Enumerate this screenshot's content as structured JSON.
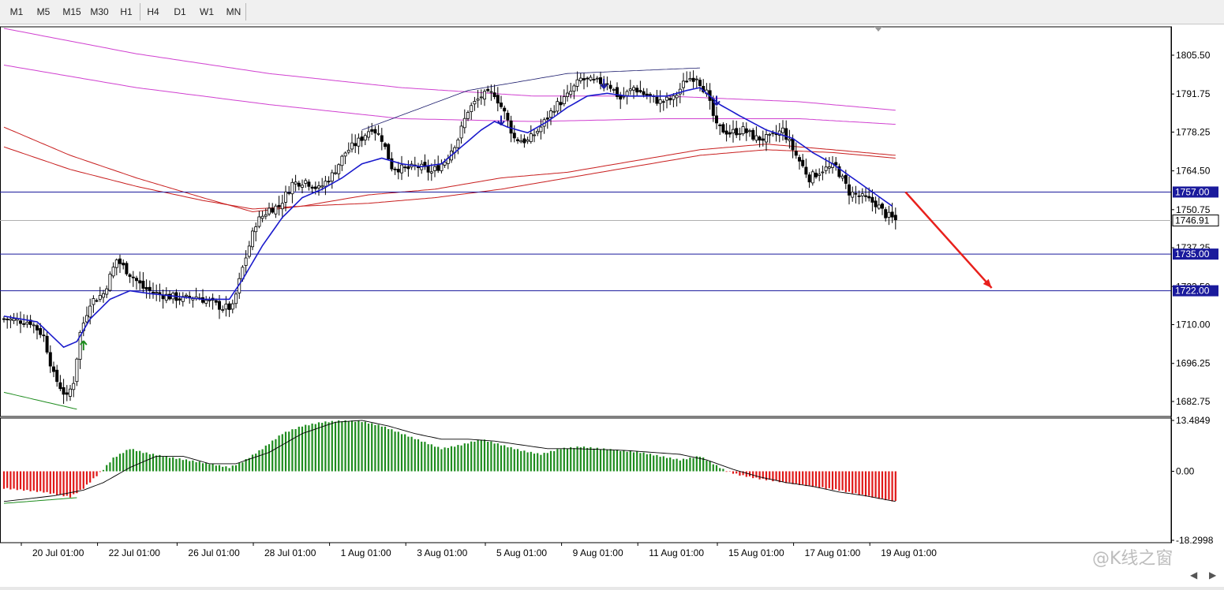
{
  "toolbar": {
    "timeframes": [
      "M1",
      "M5",
      "M15",
      "M30",
      "H1",
      "H4",
      "D1",
      "W1",
      "MN"
    ]
  },
  "watermark": "@K线之窗",
  "chart_data": {
    "type": "candlestick",
    "title": "",
    "price_axis": {
      "ylim": [
        1678.0,
        1815.0
      ],
      "ticks": [
        "1805.50",
        "1791.75",
        "1778.25",
        "1764.50",
        "1750.75",
        "1737.25",
        "1723.50",
        "1710.00",
        "1696.25",
        "1682.75"
      ],
      "tick_values": [
        1805.5,
        1791.75,
        1778.25,
        1764.5,
        1750.75,
        1737.25,
        1723.5,
        1710.0,
        1696.25,
        1682.75
      ]
    },
    "current_price": {
      "value": 1746.91,
      "label": "1746.91"
    },
    "horizontal_levels": [
      {
        "value": 1757.0,
        "label": "1757.00",
        "color": "#1a1a9c"
      },
      {
        "value": 1735.0,
        "label": "1735.00",
        "color": "#1a1a9c"
      },
      {
        "value": 1722.0,
        "label": "1722.00",
        "color": "#1a1a9c"
      }
    ],
    "x_labels": [
      "20 Jul 01:00",
      "22 Jul 01:00",
      "26 Jul 01:00",
      "28 Jul 01:00",
      "1 Aug 01:00",
      "3 Aug 01:00",
      "5 Aug 01:00",
      "9 Aug 01:00",
      "11 Aug 01:00",
      "15 Aug 01:00",
      "17 Aug 01:00",
      "19 Aug 01:00"
    ],
    "x_label_index": [
      5,
      28,
      52,
      75,
      98,
      121,
      145,
      168,
      191,
      215,
      238,
      261
    ],
    "candle_count": 270,
    "close_keys": [
      [
        0,
        1712
      ],
      [
        8,
        1711
      ],
      [
        12,
        1706
      ],
      [
        15,
        1692
      ],
      [
        19,
        1684
      ],
      [
        21,
        1690
      ],
      [
        23,
        1707
      ],
      [
        26,
        1718
      ],
      [
        30,
        1721
      ],
      [
        34,
        1733
      ],
      [
        38,
        1728
      ],
      [
        42,
        1723
      ],
      [
        46,
        1721
      ],
      [
        50,
        1720
      ],
      [
        54,
        1719
      ],
      [
        58,
        1720
      ],
      [
        62,
        1718
      ],
      [
        66,
        1716
      ],
      [
        69,
        1716
      ],
      [
        72,
        1730
      ],
      [
        76,
        1746
      ],
      [
        80,
        1751
      ],
      [
        83,
        1752
      ],
      [
        87,
        1760
      ],
      [
        91,
        1761
      ],
      [
        95,
        1758
      ],
      [
        99,
        1763
      ],
      [
        103,
        1771
      ],
      [
        107,
        1775
      ],
      [
        111,
        1780
      ],
      [
        114,
        1776
      ],
      [
        117,
        1766
      ],
      [
        121,
        1765
      ],
      [
        125,
        1766
      ],
      [
        129,
        1764
      ],
      [
        133,
        1768
      ],
      [
        137,
        1776
      ],
      [
        140,
        1786
      ],
      [
        144,
        1791
      ],
      [
        148,
        1792
      ],
      [
        151,
        1785
      ],
      [
        154,
        1776
      ],
      [
        158,
        1775
      ],
      [
        162,
        1780
      ],
      [
        166,
        1787
      ],
      [
        170,
        1791
      ],
      [
        174,
        1797
      ],
      [
        178,
        1796
      ],
      [
        182,
        1796
      ],
      [
        186,
        1790
      ],
      [
        190,
        1794
      ],
      [
        194,
        1791
      ],
      [
        198,
        1789
      ],
      [
        202,
        1790
      ],
      [
        206,
        1797
      ],
      [
        209,
        1798
      ],
      [
        212,
        1792
      ],
      [
        215,
        1780
      ],
      [
        219,
        1778
      ],
      [
        223,
        1779
      ],
      [
        227,
        1776
      ],
      [
        231,
        1776
      ],
      [
        235,
        1779
      ],
      [
        239,
        1770
      ],
      [
        243,
        1762
      ],
      [
        247,
        1765
      ],
      [
        251,
        1766
      ],
      [
        255,
        1757
      ],
      [
        259,
        1755
      ],
      [
        263,
        1753
      ],
      [
        266,
        1749
      ],
      [
        269,
        1747
      ]
    ],
    "ema_fast_keys": [
      [
        0,
        1713
      ],
      [
        10,
        1711
      ],
      [
        18,
        1702
      ],
      [
        22,
        1704
      ],
      [
        26,
        1712
      ],
      [
        32,
        1719
      ],
      [
        38,
        1722
      ],
      [
        44,
        1721
      ],
      [
        52,
        1720
      ],
      [
        60,
        1719
      ],
      [
        68,
        1719
      ],
      [
        72,
        1726
      ],
      [
        78,
        1738
      ],
      [
        84,
        1748
      ],
      [
        90,
        1755
      ],
      [
        96,
        1758
      ],
      [
        102,
        1762
      ],
      [
        108,
        1767
      ],
      [
        114,
        1769
      ],
      [
        120,
        1767
      ],
      [
        126,
        1766
      ],
      [
        132,
        1767
      ],
      [
        138,
        1773
      ],
      [
        144,
        1779
      ],
      [
        148,
        1782
      ],
      [
        152,
        1780
      ],
      [
        158,
        1778
      ],
      [
        164,
        1782
      ],
      [
        170,
        1787
      ],
      [
        176,
        1791
      ],
      [
        182,
        1792
      ],
      [
        188,
        1791
      ],
      [
        194,
        1791
      ],
      [
        200,
        1791
      ],
      [
        206,
        1793
      ],
      [
        210,
        1794
      ],
      [
        216,
        1788
      ],
      [
        222,
        1784
      ],
      [
        230,
        1779
      ],
      [
        238,
        1776
      ],
      [
        244,
        1771
      ],
      [
        250,
        1767
      ],
      [
        256,
        1762
      ],
      [
        262,
        1757
      ],
      [
        268,
        1752
      ]
    ],
    "red_ma_1_keys": [
      [
        0,
        1780
      ],
      [
        20,
        1770
      ],
      [
        40,
        1762
      ],
      [
        60,
        1755
      ],
      [
        75,
        1750
      ],
      [
        90,
        1752
      ],
      [
        110,
        1756
      ],
      [
        130,
        1758
      ],
      [
        150,
        1762
      ],
      [
        170,
        1764
      ],
      [
        190,
        1768
      ],
      [
        210,
        1772
      ],
      [
        230,
        1774
      ],
      [
        250,
        1772
      ],
      [
        269,
        1770
      ]
    ],
    "red_ma_2_keys": [
      [
        0,
        1773
      ],
      [
        20,
        1765
      ],
      [
        40,
        1759
      ],
      [
        60,
        1754
      ],
      [
        75,
        1751
      ],
      [
        90,
        1752
      ],
      [
        110,
        1753
      ],
      [
        130,
        1755
      ],
      [
        150,
        1758
      ],
      [
        170,
        1762
      ],
      [
        190,
        1766
      ],
      [
        210,
        1770
      ],
      [
        230,
        1772
      ],
      [
        250,
        1771
      ],
      [
        269,
        1769
      ]
    ],
    "magenta_ma_1_keys": [
      [
        0,
        1815
      ],
      [
        40,
        1806
      ],
      [
        80,
        1799
      ],
      [
        120,
        1794
      ],
      [
        160,
        1791
      ],
      [
        200,
        1791
      ],
      [
        240,
        1789
      ],
      [
        269,
        1786
      ]
    ],
    "magenta_ma_2_keys": [
      [
        0,
        1802
      ],
      [
        40,
        1794
      ],
      [
        80,
        1788
      ],
      [
        120,
        1783
      ],
      [
        160,
        1782
      ],
      [
        200,
        1783
      ],
      [
        240,
        1783
      ],
      [
        269,
        1781
      ]
    ],
    "channel_keys": [
      [
        108,
        1779
      ],
      [
        140,
        1793
      ],
      [
        170,
        1799
      ],
      [
        210,
        1801
      ]
    ],
    "green_trend_keys": [
      [
        0,
        1686
      ],
      [
        22,
        1680
      ]
    ],
    "arrows": [
      {
        "index": 24,
        "direction": "up",
        "price": 1702,
        "color": "#1e8c1e"
      },
      {
        "index": 150,
        "direction": "down",
        "price": 1783,
        "color": "#1a1aa8"
      },
      {
        "index": 181,
        "direction": "down",
        "price": 1796,
        "color": "#1a1aa8"
      },
      {
        "index": 215,
        "direction": "down",
        "price": 1790,
        "color": "#1a1aa8"
      }
    ],
    "projection_arrow": {
      "from": [
        272,
        1757
      ],
      "to": [
        298,
        1723
      ],
      "color": "#e8201c"
    },
    "oscillator": {
      "ylim": [
        -18.2998,
        13.4849
      ],
      "ticks": [
        "13.4849",
        "0.00",
        "-18.2998"
      ],
      "tick_values": [
        13.4849,
        0.0,
        -18.2998
      ],
      "hist_keys": [
        [
          0,
          -4.5
        ],
        [
          12,
          -5.5
        ],
        [
          20,
          -6.8
        ],
        [
          24,
          -4.5
        ],
        [
          27,
          -2
        ],
        [
          30,
          0.5
        ],
        [
          33,
          3.5
        ],
        [
          38,
          6
        ],
        [
          42,
          5
        ],
        [
          48,
          4
        ],
        [
          55,
          3
        ],
        [
          62,
          2
        ],
        [
          68,
          1
        ],
        [
          72,
          2.5
        ],
        [
          78,
          6
        ],
        [
          84,
          10
        ],
        [
          90,
          12
        ],
        [
          96,
          13
        ],
        [
          102,
          13.4
        ],
        [
          108,
          13.2
        ],
        [
          114,
          12
        ],
        [
          120,
          10
        ],
        [
          126,
          8
        ],
        [
          132,
          6
        ],
        [
          138,
          7
        ],
        [
          144,
          8.5
        ],
        [
          150,
          7
        ],
        [
          156,
          5.5
        ],
        [
          162,
          4.5
        ],
        [
          168,
          6
        ],
        [
          174,
          6.5
        ],
        [
          180,
          6
        ],
        [
          186,
          5.5
        ],
        [
          192,
          5
        ],
        [
          198,
          4
        ],
        [
          204,
          3
        ],
        [
          210,
          4
        ],
        [
          214,
          2
        ],
        [
          218,
          0
        ],
        [
          222,
          -1
        ],
        [
          228,
          -2
        ],
        [
          236,
          -3
        ],
        [
          244,
          -4
        ],
        [
          252,
          -5
        ],
        [
          260,
          -6.5
        ],
        [
          269,
          -8
        ]
      ],
      "signal_keys": [
        [
          0,
          -8
        ],
        [
          15,
          -6.5
        ],
        [
          24,
          -5
        ],
        [
          30,
          -3
        ],
        [
          38,
          1
        ],
        [
          46,
          4
        ],
        [
          54,
          4
        ],
        [
          62,
          2
        ],
        [
          70,
          2
        ],
        [
          80,
          5
        ],
        [
          90,
          10
        ],
        [
          100,
          13
        ],
        [
          108,
          13.5
        ],
        [
          116,
          12
        ],
        [
          124,
          10
        ],
        [
          132,
          8.5
        ],
        [
          140,
          8.5
        ],
        [
          148,
          8
        ],
        [
          156,
          7
        ],
        [
          164,
          6
        ],
        [
          172,
          6
        ],
        [
          180,
          5.8
        ],
        [
          188,
          5.5
        ],
        [
          196,
          5
        ],
        [
          204,
          4.5
        ],
        [
          212,
          3
        ],
        [
          220,
          0.5
        ],
        [
          228,
          -1.5
        ],
        [
          236,
          -3
        ],
        [
          244,
          -4
        ],
        [
          252,
          -5.5
        ],
        [
          260,
          -6.5
        ],
        [
          269,
          -8
        ]
      ],
      "green_line_keys": [
        [
          0,
          -8.5
        ],
        [
          22,
          -7
        ]
      ]
    },
    "colors": {
      "bull": "#ffffff",
      "bear": "#000000",
      "wick": "#000000",
      "ema_fast": "#1a1acc",
      "red_ma": "#c81e1e",
      "magenta_ma": "#d040d0",
      "hist_pos": "#1e8c1e",
      "hist_neg": "#e01818",
      "signal": "#000000",
      "label_bg": "#1a1a9c",
      "label_text": "#ffffff"
    }
  }
}
